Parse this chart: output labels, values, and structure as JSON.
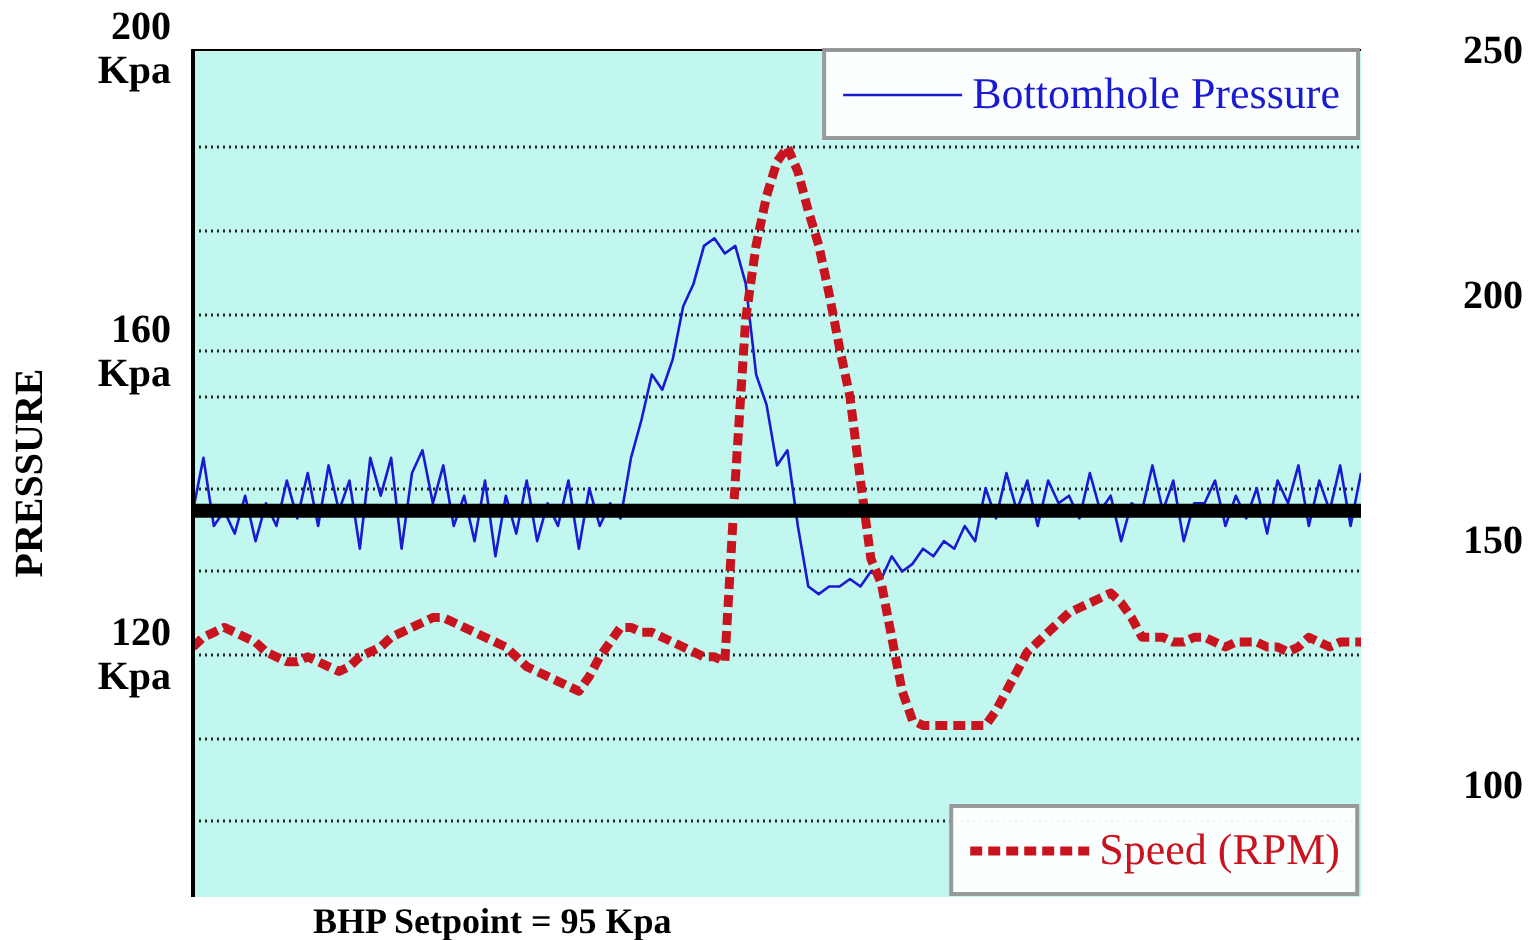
{
  "chart_data": {
    "type": "line",
    "ylabel": "PRESSURE",
    "annotations": [
      "BHP Setpoint = 95 Kpa"
    ],
    "categories": [
      null,
      null,
      null,
      null,
      null,
      null,
      null,
      null,
      null,
      null,
      null,
      null,
      null,
      null,
      null,
      null,
      null,
      null,
      null,
      null,
      null,
      null,
      null,
      null,
      null,
      null,
      null,
      null,
      null,
      null,
      null,
      null,
      null,
      null,
      null,
      null,
      null,
      null,
      null,
      null,
      null,
      null,
      null,
      null,
      null,
      null,
      null,
      null,
      null,
      null,
      null,
      null,
      null,
      null,
      null,
      null,
      null,
      null,
      null,
      null,
      null,
      null,
      null,
      null,
      null,
      null,
      null,
      null,
      null,
      null,
      null,
      null,
      null,
      null,
      null,
      null,
      null,
      null,
      null,
      null,
      null,
      null,
      null,
      null,
      null,
      null,
      null,
      null,
      null,
      null,
      null,
      null,
      null,
      null,
      null,
      null,
      null,
      null,
      null,
      null,
      null,
      null,
      null,
      null,
      null,
      null,
      null,
      null,
      null,
      null,
      null,
      null,
      null
    ],
    "ylim": [
      88,
      200
    ],
    "yticks": [
      {
        "value": 200,
        "label": "200\nKpa"
      },
      {
        "value": 160,
        "label": "160\nKpa"
      },
      {
        "value": 120,
        "label": "120\nKpa"
      },
      {
        "value": 187,
        "label": null
      },
      {
        "value": 176,
        "label": null
      },
      {
        "value": 165,
        "label": null
      },
      {
        "value": 154,
        "label": null
      },
      {
        "value": 142,
        "label": null
      },
      {
        "value": 131,
        "label": null
      },
      {
        "value": 109,
        "label": null
      },
      {
        "value": 98,
        "label": null
      }
    ],
    "y2lim": [
      77,
      250
    ],
    "y2ticks": [
      250,
      200,
      150,
      100
    ],
    "tick_labels": "y",
    "grid": "y",
    "legend": "right",
    "ref_lines": [
      {
        "axis": "y",
        "value": 139,
        "color": "#000000"
      }
    ],
    "series": [
      {
        "name": "Bottomhole Pressure",
        "color": "#1a1ad2",
        "line_style": "solid",
        "values": [
          139,
          146,
          137,
          139,
          136,
          141,
          135,
          140,
          137,
          143,
          138,
          144,
          137,
          145,
          139,
          143,
          134,
          146,
          141,
          146,
          134,
          144,
          147,
          140,
          145,
          137,
          141,
          135,
          143,
          133,
          141,
          136,
          143,
          135,
          140,
          137,
          143,
          134,
          142,
          137,
          140,
          138,
          146,
          151,
          157,
          155,
          159,
          166,
          169,
          174,
          175,
          173,
          174,
          169,
          157,
          153,
          145,
          147,
          137,
          129,
          128,
          129,
          129,
          130,
          129,
          131,
          130,
          133,
          131,
          132,
          134,
          133,
          135,
          134,
          137,
          135,
          142,
          138,
          144,
          139,
          143,
          137,
          143,
          140,
          141,
          138,
          144,
          139,
          141,
          135,
          140,
          139,
          145,
          139,
          143,
          135,
          140,
          140,
          143,
          137,
          141,
          138,
          142,
          136,
          143,
          140,
          145,
          137,
          143,
          139,
          145,
          137,
          144
        ]
      },
      {
        "name": "Speed (RPM)",
        "color": "#c8141e",
        "line_style": "dashed",
        "axis": "y2",
        "values": [
          128,
          130,
          131,
          132,
          131,
          130,
          129,
          127,
          126,
          125,
          125,
          126,
          125,
          124,
          123,
          124,
          126,
          127,
          128,
          130,
          131,
          132,
          133,
          134,
          134,
          133,
          132,
          131,
          130,
          129,
          128,
          126,
          124,
          123,
          122,
          121,
          120,
          119,
          122,
          126,
          129,
          132,
          132,
          131,
          131,
          130,
          129,
          128,
          127,
          126,
          126,
          125,
          162,
          195,
          210,
          220,
          227,
          230,
          225,
          217,
          210,
          200,
          189,
          179,
          162,
          146,
          141,
          130,
          119,
          113,
          112,
          112,
          112,
          112,
          112,
          112,
          112,
          115,
          119,
          123,
          127,
          129,
          131,
          133,
          135,
          136,
          137,
          138,
          139,
          137,
          134,
          130,
          130,
          130,
          129,
          129,
          130,
          130,
          129,
          128,
          129,
          129,
          129,
          128,
          128,
          127,
          128,
          130,
          129,
          128,
          129,
          129,
          129
        ]
      }
    ]
  }
}
